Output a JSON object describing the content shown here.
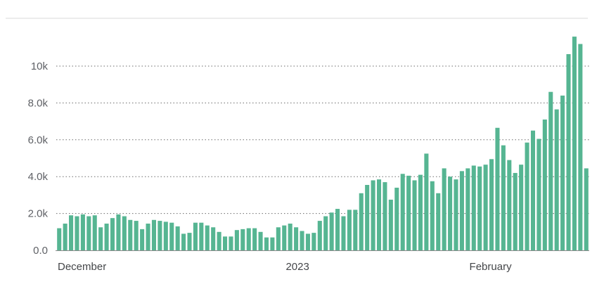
{
  "chart_data": {
    "type": "bar",
    "title": "",
    "xlabel": "",
    "ylabel": "",
    "ylim": [
      0,
      12000
    ],
    "grid": true,
    "y_ticks": [
      {
        "value": 0,
        "label": "0.0"
      },
      {
        "value": 2000,
        "label": "2.0k"
      },
      {
        "value": 4000,
        "label": "4.0k"
      },
      {
        "value": 6000,
        "label": "6.0k"
      },
      {
        "value": 8000,
        "label": "8.0k"
      },
      {
        "value": 10000,
        "label": "10k"
      }
    ],
    "x_ticks": [
      {
        "index": 0,
        "label": "December"
      },
      {
        "index": 39,
        "label": "2023"
      },
      {
        "index": 70,
        "label": "February"
      }
    ],
    "color": "#56b592",
    "values": [
      1200,
      1450,
      1900,
      1850,
      1950,
      1850,
      1900,
      1250,
      1450,
      1750,
      1950,
      1850,
      1650,
      1600,
      1150,
      1450,
      1650,
      1600,
      1550,
      1500,
      1300,
      900,
      950,
      1500,
      1500,
      1350,
      1250,
      1000,
      750,
      750,
      1100,
      1150,
      1200,
      1200,
      1000,
      700,
      700,
      1250,
      1350,
      1450,
      1250,
      1050,
      900,
      950,
      1600,
      1850,
      2050,
      2250,
      1850,
      2200,
      2200,
      3100,
      3550,
      3800,
      3850,
      3700,
      2750,
      3400,
      4150,
      4050,
      3800,
      4100,
      5250,
      3750,
      3100,
      4450,
      4000,
      3850,
      4300,
      4450,
      4600,
      4550,
      4650,
      4950,
      6650,
      5700,
      4900,
      4200,
      4650,
      5850,
      6500,
      6050,
      7100,
      8600,
      7650,
      8400,
      10650,
      11600,
      11200,
      4450
    ]
  }
}
